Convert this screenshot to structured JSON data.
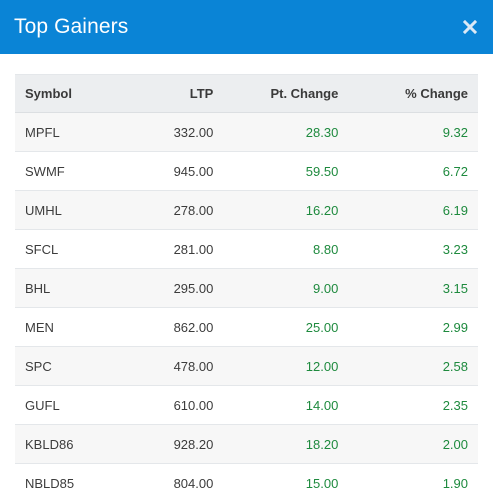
{
  "modal": {
    "title": "Top Gainers",
    "close_icon": "close-icon"
  },
  "table": {
    "headers": {
      "symbol": "Symbol",
      "ltp": "LTP",
      "pt_change": "Pt. Change",
      "pct_change": "% Change"
    },
    "rows": [
      {
        "symbol": "MPFL",
        "ltp": "332.00",
        "pt_change": "28.30",
        "pct_change": "9.32"
      },
      {
        "symbol": "SWMF",
        "ltp": "945.00",
        "pt_change": "59.50",
        "pct_change": "6.72"
      },
      {
        "symbol": "UMHL",
        "ltp": "278.00",
        "pt_change": "16.20",
        "pct_change": "6.19"
      },
      {
        "symbol": "SFCL",
        "ltp": "281.00",
        "pt_change": "8.80",
        "pct_change": "3.23"
      },
      {
        "symbol": "BHL",
        "ltp": "295.00",
        "pt_change": "9.00",
        "pct_change": "3.15"
      },
      {
        "symbol": "MEN",
        "ltp": "862.00",
        "pt_change": "25.00",
        "pct_change": "2.99"
      },
      {
        "symbol": "SPC",
        "ltp": "478.00",
        "pt_change": "12.00",
        "pct_change": "2.58"
      },
      {
        "symbol": "GUFL",
        "ltp": "610.00",
        "pt_change": "14.00",
        "pct_change": "2.35"
      },
      {
        "symbol": "KBLD86",
        "ltp": "928.20",
        "pt_change": "18.20",
        "pct_change": "2.00"
      },
      {
        "symbol": "NBLD85",
        "ltp": "804.00",
        "pt_change": "15.00",
        "pct_change": "1.90"
      }
    ]
  },
  "colors": {
    "header_bg": "#0a84d6",
    "positive": "#1e8a3e"
  }
}
